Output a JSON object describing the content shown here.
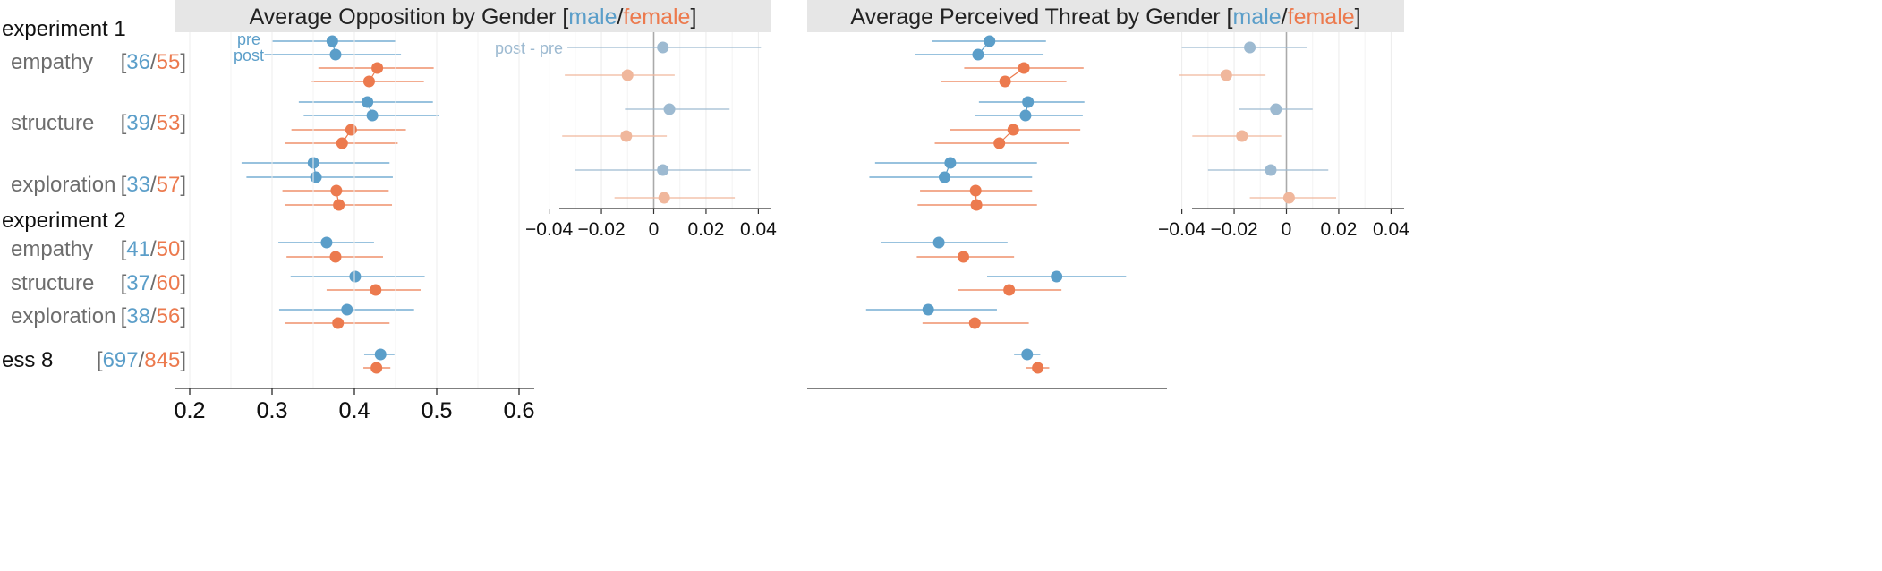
{
  "colors": {
    "male": "#5b9ec9",
    "female": "#ec7a4e",
    "male_light": "#9dbad1",
    "female_light": "#f0b79c",
    "label_gray": "#6d6d6d",
    "title_bg": "#e6e6e6",
    "grid": "#ececec",
    "axis": "#333333",
    "zero_line": "#aaaaaa"
  },
  "row_labels": {
    "groups": [
      {
        "key": "exp1",
        "title": "experiment 1"
      },
      {
        "key": "exp2",
        "title": "experiment 2"
      }
    ],
    "rows": [
      {
        "key": "e1_emp",
        "label": "empathy",
        "n_male": "36",
        "n_female": "55"
      },
      {
        "key": "e1_str",
        "label": "structure",
        "n_male": "39",
        "n_female": "53"
      },
      {
        "key": "e1_exp",
        "label": "exploration",
        "n_male": "33",
        "n_female": "57"
      },
      {
        "key": "e2_emp",
        "label": "empathy",
        "n_male": "41",
        "n_female": "50"
      },
      {
        "key": "e2_str",
        "label": "structure",
        "n_male": "37",
        "n_female": "60"
      },
      {
        "key": "e2_exp",
        "label": "exploration",
        "n_male": "38",
        "n_female": "56"
      },
      {
        "key": "ess8",
        "label": "ess 8",
        "n_male": "697",
        "n_female": "845"
      }
    ],
    "bracket_open": "[",
    "bracket_sep": "/",
    "bracket_close": "]"
  },
  "legend_labels": {
    "pre": "pre",
    "post": "post",
    "post_minus_pre": "post - pre"
  },
  "chart_data": [
    {
      "type": "scatter",
      "title_prefix": "Average Opposition by Gender [",
      "title_male": "male",
      "title_sep": "/",
      "title_female": "female",
      "title_suffix": "]",
      "xlim": [
        0.18,
        0.62
      ],
      "xticks": [
        "0.2",
        "0.3",
        "0.4",
        "0.5",
        "0.6"
      ],
      "series": [
        {
          "name": "male",
          "row": "e1_emp",
          "phase": "pre",
          "mean": 0.373,
          "ci": [
            0.3,
            0.45
          ]
        },
        {
          "name": "male",
          "row": "e1_emp",
          "phase": "post",
          "mean": 0.377,
          "ci": [
            0.29,
            0.457
          ]
        },
        {
          "name": "female",
          "row": "e1_emp",
          "phase": "pre",
          "mean": 0.428,
          "ci": [
            0.356,
            0.497
          ]
        },
        {
          "name": "female",
          "row": "e1_emp",
          "phase": "post",
          "mean": 0.418,
          "ci": [
            0.348,
            0.485
          ]
        },
        {
          "name": "male",
          "row": "e1_str",
          "phase": "pre",
          "mean": 0.416,
          "ci": [
            0.332,
            0.496
          ]
        },
        {
          "name": "male",
          "row": "e1_str",
          "phase": "post",
          "mean": 0.422,
          "ci": [
            0.338,
            0.504
          ]
        },
        {
          "name": "female",
          "row": "e1_str",
          "phase": "pre",
          "mean": 0.396,
          "ci": [
            0.323,
            0.463
          ]
        },
        {
          "name": "female",
          "row": "e1_str",
          "phase": "post",
          "mean": 0.385,
          "ci": [
            0.315,
            0.453
          ]
        },
        {
          "name": "male",
          "row": "e1_exp",
          "phase": "pre",
          "mean": 0.35,
          "ci": [
            0.262,
            0.443
          ]
        },
        {
          "name": "male",
          "row": "e1_exp",
          "phase": "post",
          "mean": 0.353,
          "ci": [
            0.268,
            0.447
          ]
        },
        {
          "name": "female",
          "row": "e1_exp",
          "phase": "pre",
          "mean": 0.378,
          "ci": [
            0.312,
            0.442
          ]
        },
        {
          "name": "female",
          "row": "e1_exp",
          "phase": "post",
          "mean": 0.381,
          "ci": [
            0.315,
            0.446
          ]
        },
        {
          "name": "male",
          "row": "e2_emp",
          "mean": 0.366,
          "ci": [
            0.307,
            0.424
          ]
        },
        {
          "name": "female",
          "row": "e2_emp",
          "mean": 0.377,
          "ci": [
            0.317,
            0.435
          ]
        },
        {
          "name": "male",
          "row": "e2_str",
          "mean": 0.401,
          "ci": [
            0.322,
            0.486
          ]
        },
        {
          "name": "female",
          "row": "e2_str",
          "mean": 0.426,
          "ci": [
            0.366,
            0.481
          ]
        },
        {
          "name": "male",
          "row": "e2_exp",
          "mean": 0.391,
          "ci": [
            0.308,
            0.473
          ]
        },
        {
          "name": "female",
          "row": "e2_exp",
          "mean": 0.38,
          "ci": [
            0.315,
            0.443
          ]
        },
        {
          "name": "male",
          "row": "ess8",
          "mean": 0.432,
          "ci": [
            0.412,
            0.449
          ]
        },
        {
          "name": "female",
          "row": "ess8",
          "mean": 0.427,
          "ci": [
            0.411,
            0.444
          ]
        }
      ],
      "inset": {
        "xlim": [
          -0.045,
          0.045
        ],
        "xticks": [
          "−0.04",
          "−0.02",
          "0",
          "0.02",
          "0.04"
        ],
        "diffs": [
          {
            "name": "male",
            "row": "e1_emp",
            "mean": 0.0035,
            "ci": [
              -0.033,
              0.041
            ]
          },
          {
            "name": "female",
            "row": "e1_emp",
            "mean": -0.01,
            "ci": [
              -0.034,
              0.008
            ]
          },
          {
            "name": "male",
            "row": "e1_str",
            "mean": 0.006,
            "ci": [
              -0.011,
              0.029
            ]
          },
          {
            "name": "female",
            "row": "e1_str",
            "mean": -0.0105,
            "ci": [
              -0.035,
              0.005
            ]
          },
          {
            "name": "male",
            "row": "e1_exp",
            "mean": 0.0035,
            "ci": [
              -0.03,
              0.037
            ]
          },
          {
            "name": "female",
            "row": "e1_exp",
            "mean": 0.004,
            "ci": [
              -0.015,
              0.031
            ]
          }
        ]
      }
    },
    {
      "type": "scatter",
      "title_prefix": "Average Perceived Threat by Gender [",
      "title_male": "male",
      "title_sep": "/",
      "title_female": "female",
      "title_suffix": "]",
      "xlim": [
        0.18,
        0.62
      ],
      "xticks": [
        "0.2",
        "0.3",
        "0.4",
        "0.5",
        "0.6"
      ],
      "series": [
        {
          "name": "male",
          "row": "e1_emp",
          "phase": "pre",
          "mean": 0.403,
          "ci": [
            0.333,
            0.472
          ]
        },
        {
          "name": "male",
          "row": "e1_emp",
          "phase": "post",
          "mean": 0.389,
          "ci": [
            0.312,
            0.469
          ]
        },
        {
          "name": "female",
          "row": "e1_emp",
          "phase": "pre",
          "mean": 0.445,
          "ci": [
            0.372,
            0.518
          ]
        },
        {
          "name": "female",
          "row": "e1_emp",
          "phase": "post",
          "mean": 0.422,
          "ci": [
            0.344,
            0.497
          ]
        },
        {
          "name": "male",
          "row": "e1_str",
          "phase": "pre",
          "mean": 0.45,
          "ci": [
            0.39,
            0.519
          ]
        },
        {
          "name": "male",
          "row": "e1_str",
          "phase": "post",
          "mean": 0.447,
          "ci": [
            0.385,
            0.517
          ]
        },
        {
          "name": "female",
          "row": "e1_str",
          "phase": "pre",
          "mean": 0.432,
          "ci": [
            0.355,
            0.514
          ]
        },
        {
          "name": "female",
          "row": "e1_str",
          "phase": "post",
          "mean": 0.415,
          "ci": [
            0.336,
            0.5
          ]
        },
        {
          "name": "male",
          "row": "e1_exp",
          "phase": "pre",
          "mean": 0.355,
          "ci": [
            0.263,
            0.461
          ]
        },
        {
          "name": "male",
          "row": "e1_exp",
          "phase": "post",
          "mean": 0.348,
          "ci": [
            0.256,
            0.455
          ]
        },
        {
          "name": "female",
          "row": "e1_exp",
          "phase": "pre",
          "mean": 0.386,
          "ci": [
            0.318,
            0.455
          ]
        },
        {
          "name": "female",
          "row": "e1_exp",
          "phase": "post",
          "mean": 0.387,
          "ci": [
            0.315,
            0.461
          ]
        },
        {
          "name": "male",
          "row": "e2_emp",
          "mean": 0.341,
          "ci": [
            0.27,
            0.425
          ]
        },
        {
          "name": "female",
          "row": "e2_emp",
          "mean": 0.371,
          "ci": [
            0.314,
            0.433
          ]
        },
        {
          "name": "male",
          "row": "e2_str",
          "mean": 0.485,
          "ci": [
            0.4,
            0.57
          ]
        },
        {
          "name": "female",
          "row": "e2_str",
          "mean": 0.427,
          "ci": [
            0.364,
            0.491
          ]
        },
        {
          "name": "male",
          "row": "e2_exp",
          "mean": 0.328,
          "ci": [
            0.252,
            0.412
          ]
        },
        {
          "name": "female",
          "row": "e2_exp",
          "mean": 0.385,
          "ci": [
            0.321,
            0.451
          ]
        },
        {
          "name": "male",
          "row": "ess8",
          "mean": 0.449,
          "ci": [
            0.433,
            0.465
          ]
        },
        {
          "name": "female",
          "row": "ess8",
          "mean": 0.462,
          "ci": [
            0.448,
            0.476
          ]
        }
      ],
      "inset": {
        "xlim": [
          -0.045,
          0.045
        ],
        "xticks": [
          "−0.04",
          "−0.02",
          "0",
          "0.02",
          "0.04"
        ],
        "diffs": [
          {
            "name": "male",
            "row": "e1_emp",
            "mean": -0.014,
            "ci": [
              -0.04,
              0.008
            ]
          },
          {
            "name": "female",
            "row": "e1_emp",
            "mean": -0.023,
            "ci": [
              -0.041,
              -0.008
            ]
          },
          {
            "name": "male",
            "row": "e1_str",
            "mean": -0.004,
            "ci": [
              -0.018,
              0.01
            ]
          },
          {
            "name": "female",
            "row": "e1_str",
            "mean": -0.017,
            "ci": [
              -0.036,
              -0.002
            ]
          },
          {
            "name": "male",
            "row": "e1_exp",
            "mean": -0.006,
            "ci": [
              -0.03,
              0.016
            ]
          },
          {
            "name": "female",
            "row": "e1_exp",
            "mean": 0.001,
            "ci": [
              -0.014,
              0.019
            ]
          }
        ]
      }
    }
  ]
}
